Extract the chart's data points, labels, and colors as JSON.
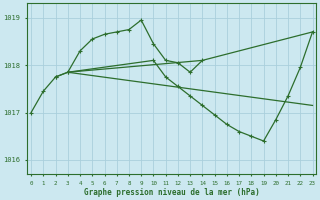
{
  "title": "Graphe pression niveau de la mer (hPa)",
  "bg_color": "#cce8f0",
  "grid_color": "#aacfdc",
  "line_color": "#2d6e2d",
  "ylim": [
    1015.7,
    1019.3
  ],
  "yticks": [
    1016,
    1017,
    1018,
    1019
  ],
  "xlim": [
    -0.3,
    23.3
  ],
  "xticks": [
    0,
    1,
    2,
    3,
    4,
    5,
    6,
    7,
    8,
    9,
    10,
    11,
    12,
    13,
    14,
    15,
    16,
    17,
    18,
    19,
    20,
    21,
    22,
    23
  ],
  "series1": {
    "x": [
      0,
      1,
      2,
      3,
      4,
      5,
      6,
      7,
      8,
      9,
      10,
      11,
      12,
      13,
      14
    ],
    "y": [
      1017.0,
      1017.45,
      1017.75,
      1017.85,
      1018.3,
      1018.55,
      1018.65,
      1018.7,
      1018.75,
      1018.95,
      1018.45,
      1018.1,
      1018.05,
      1017.85,
      1018.1
    ]
  },
  "series2": {
    "x": [
      2,
      3,
      10,
      11,
      12,
      13,
      14,
      15,
      16,
      17,
      18,
      19,
      20,
      21,
      22,
      23
    ],
    "y": [
      1017.75,
      1017.85,
      1018.1,
      1017.75,
      1017.55,
      1017.35,
      1017.15,
      1016.95,
      1016.75,
      1016.6,
      1016.5,
      1016.4,
      1016.85,
      1017.35,
      1017.95,
      1018.7
    ]
  },
  "series3": {
    "x": [
      3,
      14,
      23
    ],
    "y": [
      1017.85,
      1018.1,
      1018.7
    ]
  },
  "series4": {
    "x": [
      3,
      23
    ],
    "y": [
      1017.85,
      1017.15
    ]
  }
}
